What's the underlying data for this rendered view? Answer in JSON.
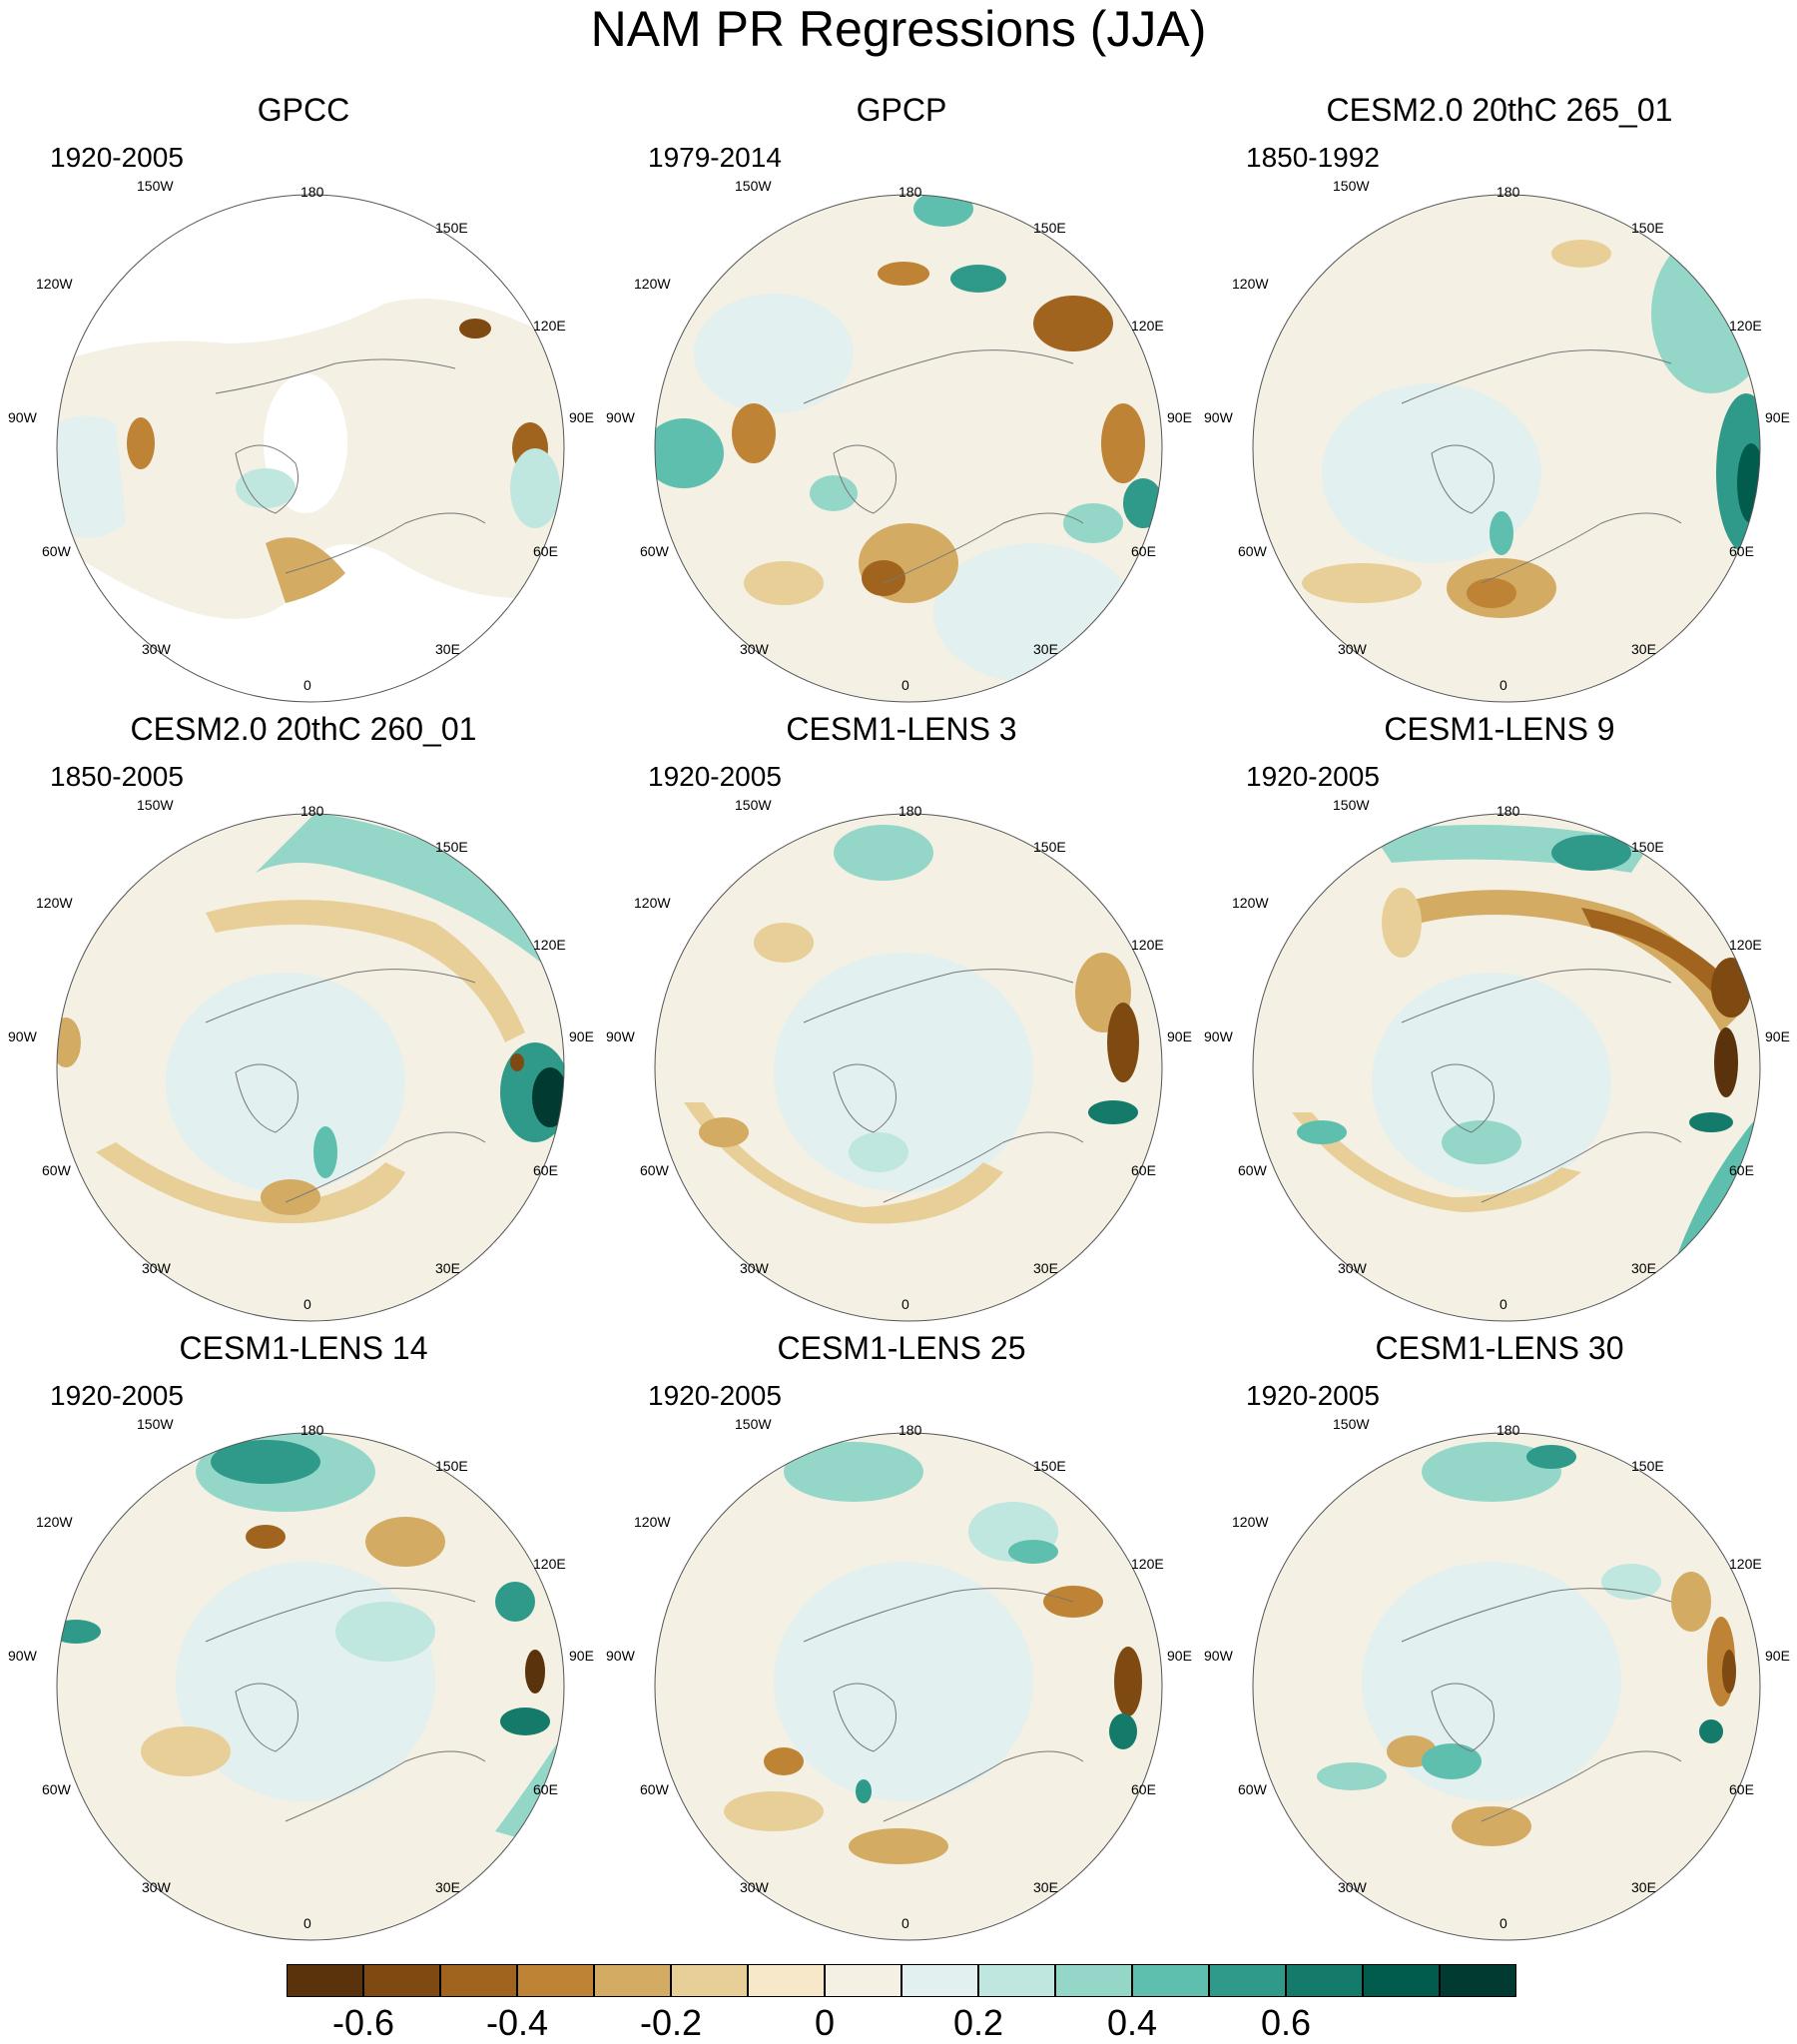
{
  "title": "NAM PR Regressions (JJA)",
  "lon_labels": [
    "180",
    "150E",
    "120E",
    "90E",
    "60E",
    "30E",
    "0",
    "30W",
    "60W",
    "90W",
    "120W",
    "150W"
  ],
  "panels": [
    {
      "title": "GPCC",
      "period": "1920-2005"
    },
    {
      "title": "GPCP",
      "period": "1979-2014"
    },
    {
      "title": "CESM2.0 20thC 265_01",
      "period": "1850-1992"
    },
    {
      "title": "CESM2.0 20thC 260_01",
      "period": "1850-2005"
    },
    {
      "title": "CESM1-LENS 3",
      "period": "1920-2005"
    },
    {
      "title": "CESM1-LENS 9",
      "period": "1920-2005"
    },
    {
      "title": "CESM1-LENS 14",
      "period": "1920-2005"
    },
    {
      "title": "CESM1-LENS 25",
      "period": "1920-2005"
    },
    {
      "title": "CESM1-LENS 30",
      "period": "1920-2005"
    }
  ],
  "colorbar": {
    "colors": [
      "#5a320b",
      "#7f4a12",
      "#a1641f",
      "#bf8335",
      "#d4ab62",
      "#e8cf97",
      "#f6e8c8",
      "#f4f0e4",
      "#e2f0ef",
      "#bfe6df",
      "#94d7c9",
      "#5fbfae",
      "#2f9a89",
      "#147a6a",
      "#015c4d",
      "#003a30"
    ],
    "tick_labels": [
      "-0.6",
      "-0.4",
      "-0.2",
      "0",
      "0.2",
      "0.4",
      "0.6"
    ]
  }
}
